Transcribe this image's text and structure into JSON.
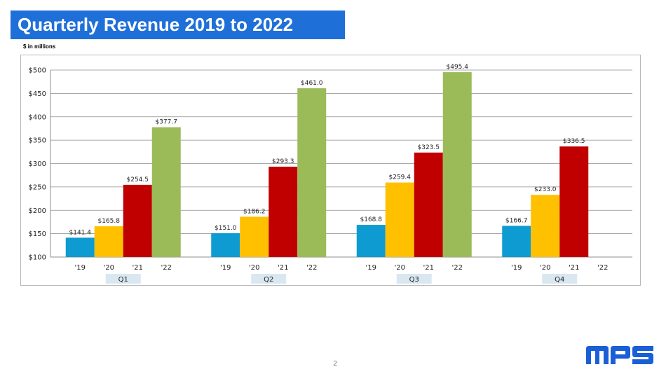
{
  "slide": {
    "title": "Quarterly Revenue 2019 to 2022",
    "units_note": "$ in millions",
    "page_number": "2",
    "logo_text": "mps"
  },
  "colors": {
    "title_bar": "#1f6fd8",
    "logo": "#1a5fd6",
    "series": [
      "#0e9bd1",
      "#ffc000",
      "#c00000",
      "#9bbb59"
    ],
    "quarter_label_bg": "#d9e7f1"
  },
  "chart_data": {
    "type": "bar",
    "title": "",
    "xlabel": "",
    "ylabel": "",
    "ylim": [
      100,
      500
    ],
    "yticks": [
      100,
      150,
      200,
      250,
      300,
      350,
      400,
      450,
      500
    ],
    "ytick_labels": [
      "$100",
      "$150",
      "$200",
      "$250",
      "$300",
      "$350",
      "$400",
      "$450",
      "$500"
    ],
    "grid": true,
    "groups": [
      "Q1",
      "Q2",
      "Q3",
      "Q4"
    ],
    "categories": [
      "'19",
      "'20",
      "'21",
      "'22"
    ],
    "series": [
      {
        "values": [
          141.4,
          151.0,
          168.8,
          166.7
        ],
        "labels": [
          "$141.4",
          "$151.0",
          "$168.8",
          "$166.7"
        ]
      },
      {
        "values": [
          165.8,
          186.2,
          259.4,
          233.0
        ],
        "labels": [
          "$165.8",
          "$186.2",
          "$259.4",
          "$233.0"
        ]
      },
      {
        "values": [
          254.5,
          293.3,
          323.5,
          336.5
        ],
        "labels": [
          "$254.5",
          "$293.3",
          "$323.5",
          "$336.5"
        ]
      },
      {
        "values": [
          377.7,
          461.0,
          495.4,
          null
        ],
        "labels": [
          "$377.7",
          "$461.0",
          "$495.4",
          ""
        ]
      }
    ]
  }
}
